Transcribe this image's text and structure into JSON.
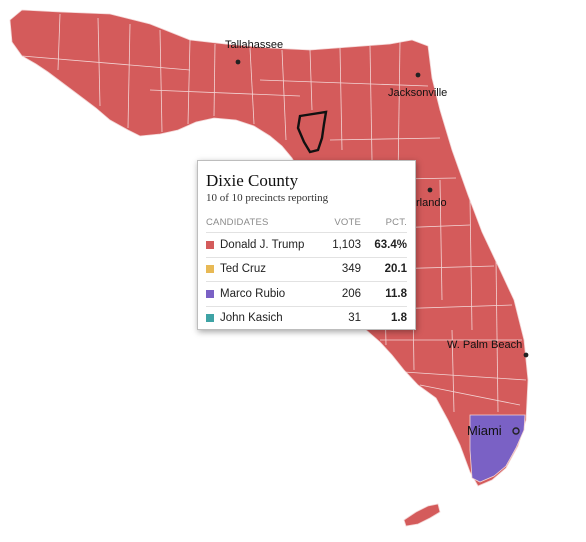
{
  "map": {
    "colors": {
      "trump": "#d45b5b",
      "rubio": "#7a61c5",
      "borders": "#f3d4d4",
      "selected_outline": "#111111"
    },
    "cities": [
      {
        "name": "Tallahassee",
        "size": "small"
      },
      {
        "name": "Jacksonville",
        "size": "small"
      },
      {
        "name": "Orlando",
        "size": "small",
        "partially_hidden": true
      },
      {
        "name": "W. Palm Beach",
        "size": "small"
      },
      {
        "name": "Miami",
        "size": "large"
      }
    ],
    "orlando_visible_text": "rlando"
  },
  "tooltip": {
    "county": "Dixie County",
    "precincts": "10 of 10 precincts reporting",
    "headers": {
      "candidates": "CANDIDATES",
      "vote": "VOTE",
      "pct": "PCT."
    },
    "rows": [
      {
        "name": "Donald J. Trump",
        "votes": "1,103",
        "pct": "63.4%",
        "color": "#d45b5b"
      },
      {
        "name": "Ted Cruz",
        "votes": "349",
        "pct": "20.1",
        "color": "#e8b955"
      },
      {
        "name": "Marco Rubio",
        "votes": "206",
        "pct": "11.8",
        "color": "#7a61c5"
      },
      {
        "name": "John Kasich",
        "votes": "31",
        "pct": "1.8",
        "color": "#3ea3a5"
      }
    ]
  }
}
